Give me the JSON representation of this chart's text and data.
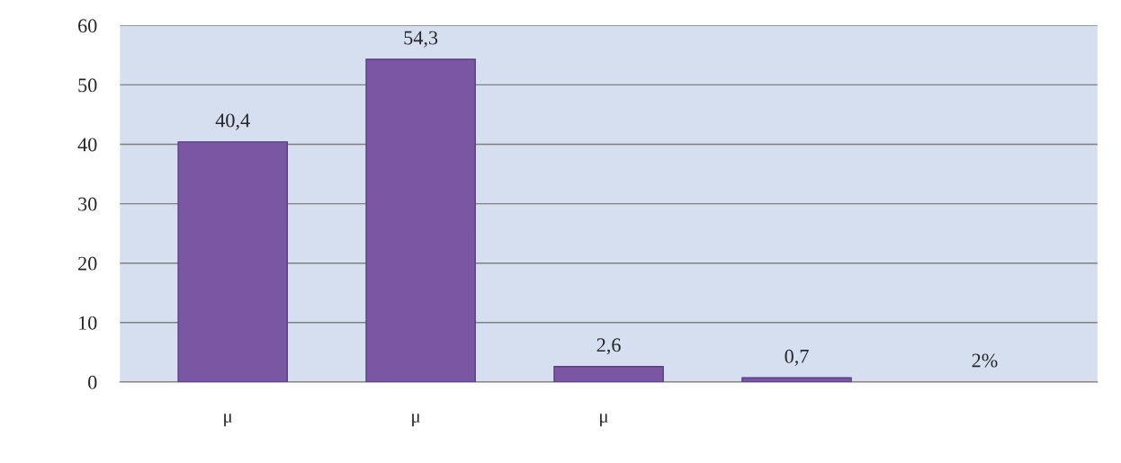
{
  "chart_data": {
    "type": "bar",
    "categories": [
      "μ",
      "μ",
      "μ",
      null,
      null
    ],
    "values": [
      40.4,
      54.3,
      2.6,
      0.7,
      null
    ],
    "value_labels": [
      "40,4",
      "54,3",
      "2,6",
      "0,7",
      "2%"
    ],
    "color": "#7a56a3",
    "ylim": [
      0,
      60
    ],
    "yticks": [
      0,
      10,
      20,
      30,
      40,
      50,
      60
    ],
    "grid": "y"
  }
}
